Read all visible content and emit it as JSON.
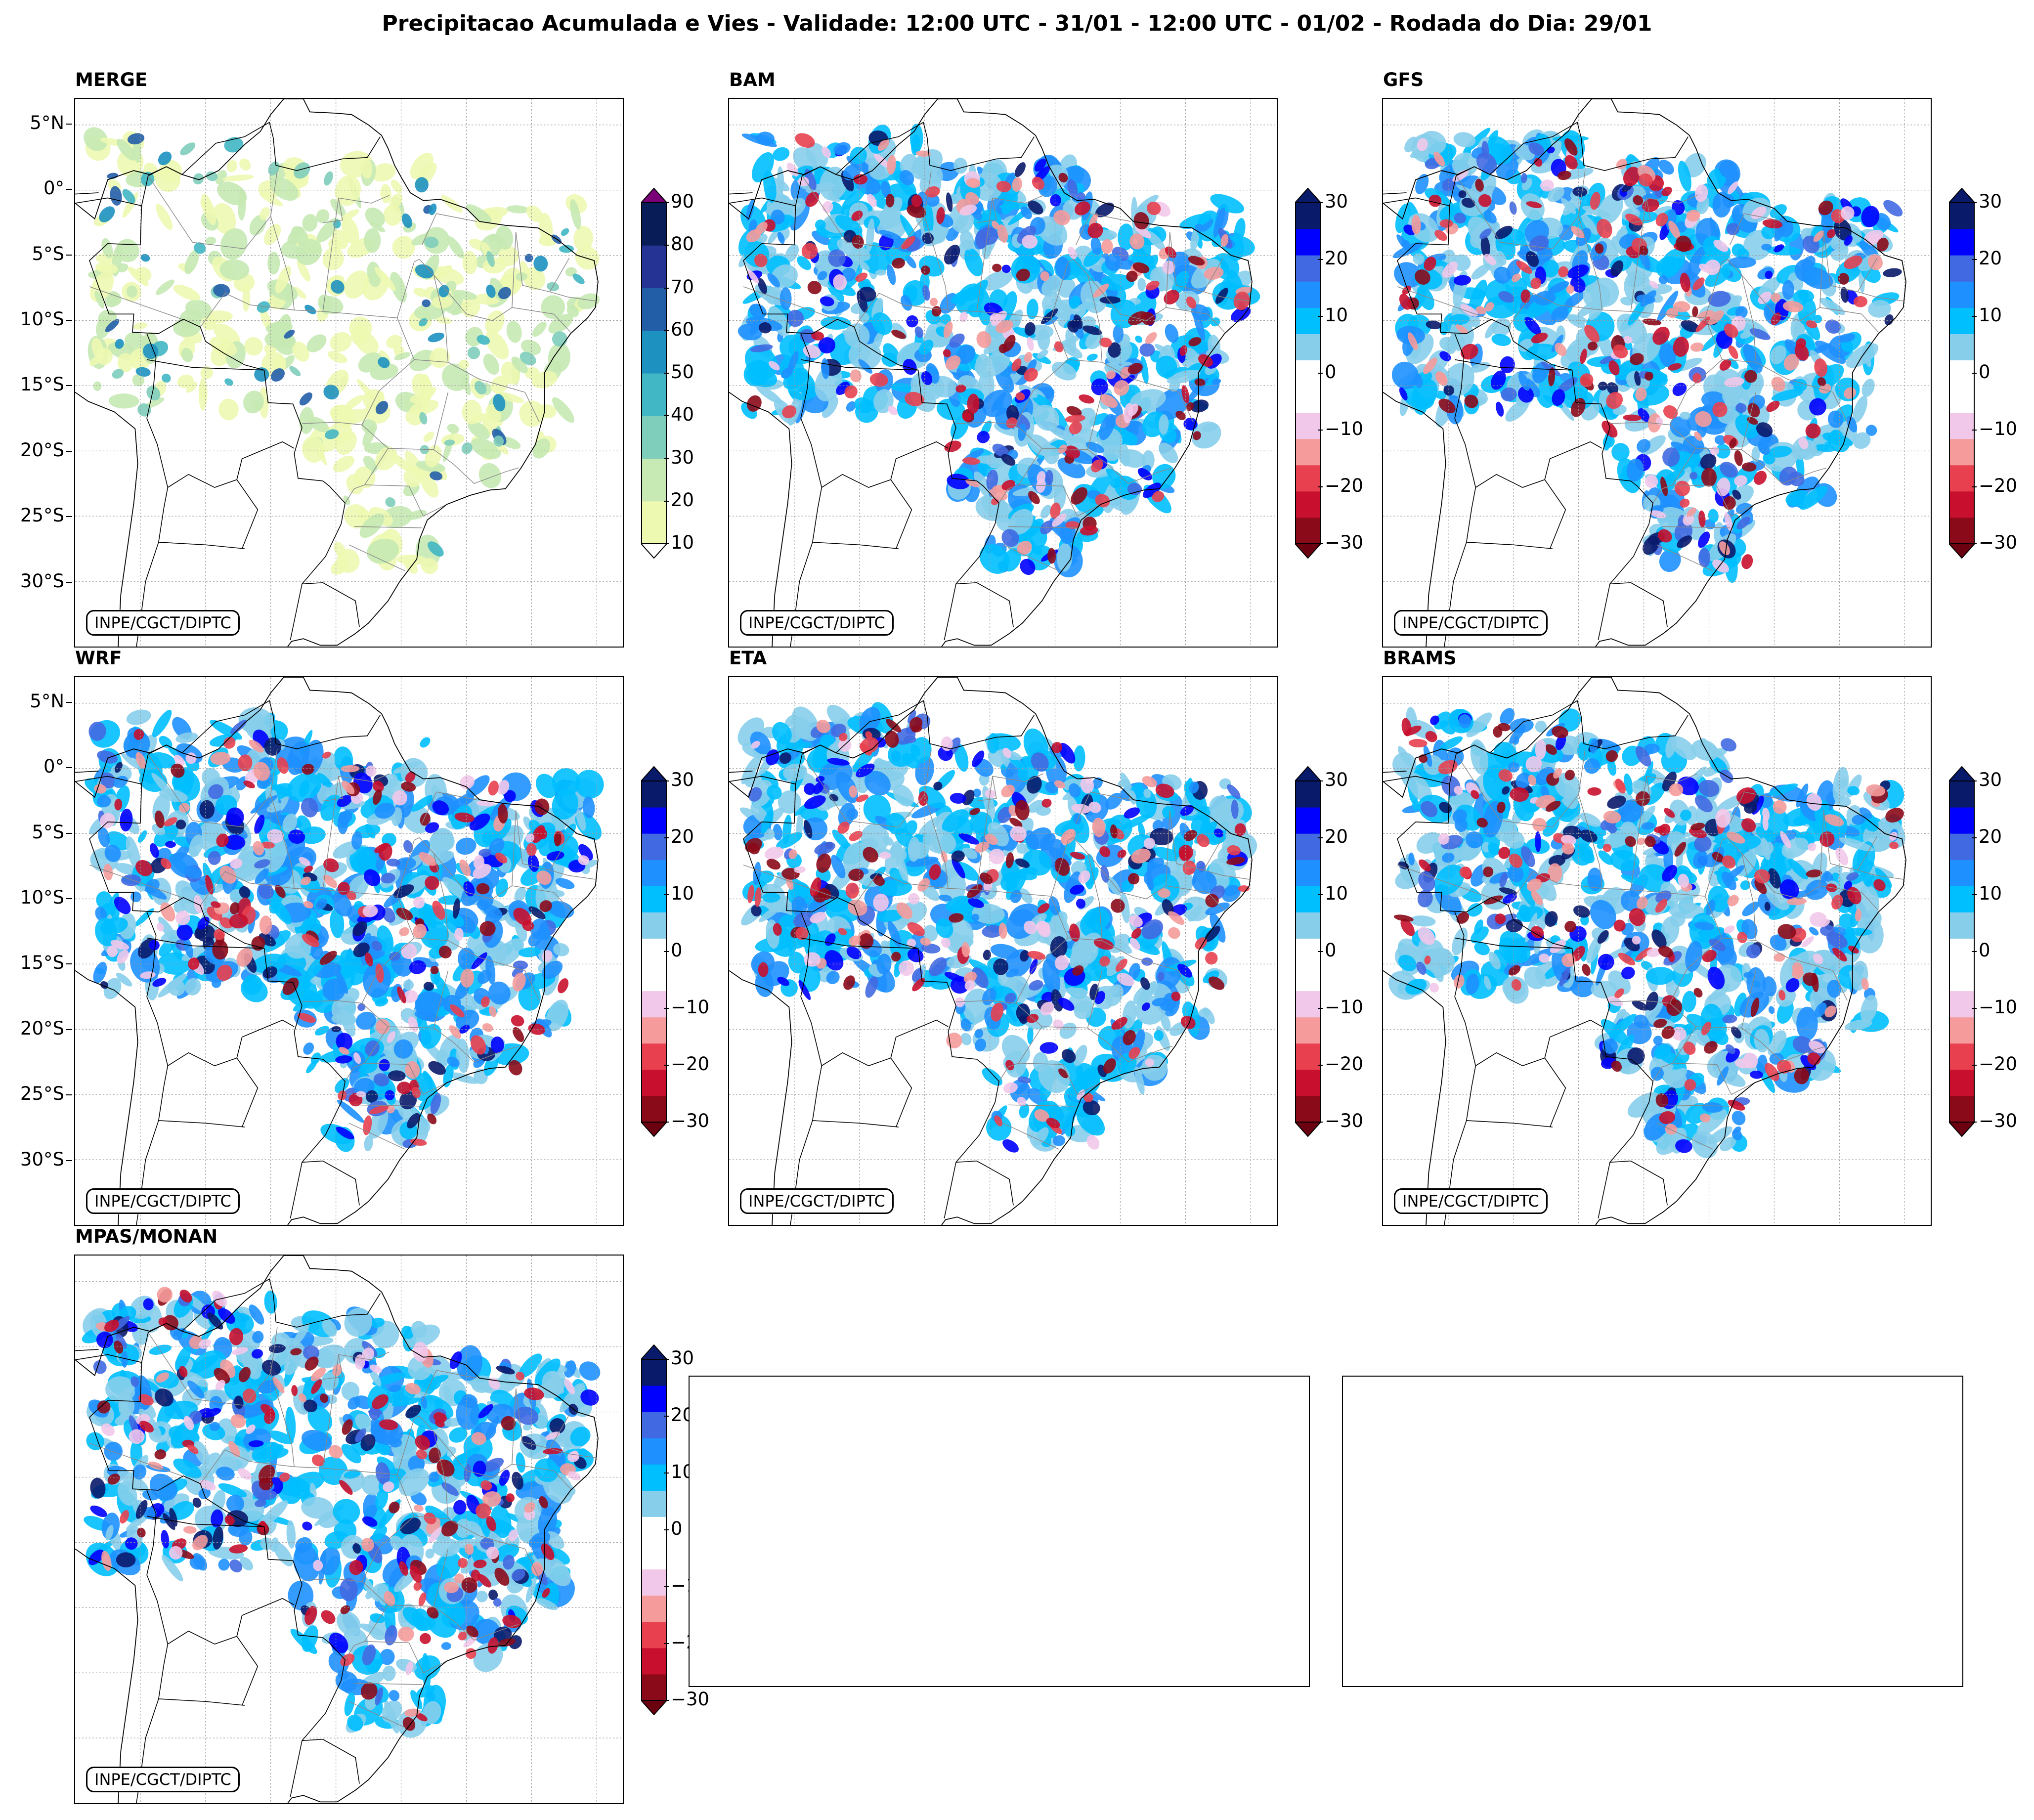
{
  "title": "Precipitacao Acumulada e Vies - Validade: 12:00 UTC - 31/01 - 12:00 UTC - 01/02 - Rodada do Dia: 29/01",
  "credit": "INPE/CGCT/DIPTC",
  "lat_ticks": [
    "5°N",
    "0°",
    "5°S",
    "10°S",
    "15°S",
    "20°S",
    "25°S",
    "30°S"
  ],
  "panels": [
    {
      "id": "merge",
      "label": "MERGE",
      "kind": "accum"
    },
    {
      "id": "bam",
      "label": "BAM",
      "kind": "bias"
    },
    {
      "id": "gfs",
      "label": "GFS",
      "kind": "bias"
    },
    {
      "id": "wrf",
      "label": "WRF",
      "kind": "bias"
    },
    {
      "id": "eta",
      "label": "ETA",
      "kind": "bias"
    },
    {
      "id": "brams",
      "label": "BRAMS",
      "kind": "bias"
    },
    {
      "id": "mpas",
      "label": "MPAS/MONAN",
      "kind": "bias"
    }
  ],
  "accum_scale": {
    "ticks": [
      "90",
      "80",
      "70",
      "60",
      "50",
      "40",
      "30",
      "20",
      "10"
    ],
    "colors": [
      "#edf8b1",
      "#c7e9b4",
      "#7fcdbb",
      "#41b6c4",
      "#1d91c0",
      "#225ea8",
      "#253494",
      "#081d58"
    ],
    "over_color": "#7a0177",
    "under_color": "#ffffff"
  },
  "bias_scale": {
    "ticks": [
      "30",
      "20",
      "10",
      "0",
      "−10",
      "−20",
      "−30"
    ],
    "colors": [
      "#8b0a1a",
      "#c8102e",
      "#e8404f",
      "#f59b9b",
      "#f2c8ea",
      "#ffffff",
      "#ffffff",
      "#87ceeb",
      "#00bfff",
      "#1e90ff",
      "#4169e1",
      "#0000ff",
      "#0a1a6b"
    ],
    "over_color": "#0a1a6b",
    "under_color": "#6b0010"
  },
  "colors": {
    "border": "#000000",
    "grid": "#999999",
    "states": "#888888"
  }
}
